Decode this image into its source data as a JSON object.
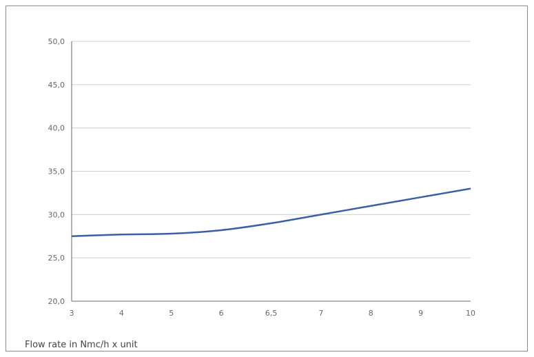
{
  "chart_data": {
    "type": "line",
    "title": "",
    "xlabel": "Flow rate in Nmc/h x unit",
    "ylabel": "",
    "categories": [
      "3",
      "4",
      "5",
      "6",
      "6,5",
      "7",
      "8",
      "9",
      "10"
    ],
    "yticks": [
      "20,0",
      "25,0",
      "30,0",
      "35,0",
      "40,0",
      "45,0",
      "50,0"
    ],
    "ylim": [
      20,
      50
    ],
    "grid": true,
    "legend": "none",
    "series": [
      {
        "values": [
          27.5,
          27.7,
          27.8,
          28.2,
          29.0,
          30.0,
          31.0,
          32.0,
          33.0
        ],
        "color": "#3a5ea8"
      }
    ]
  }
}
